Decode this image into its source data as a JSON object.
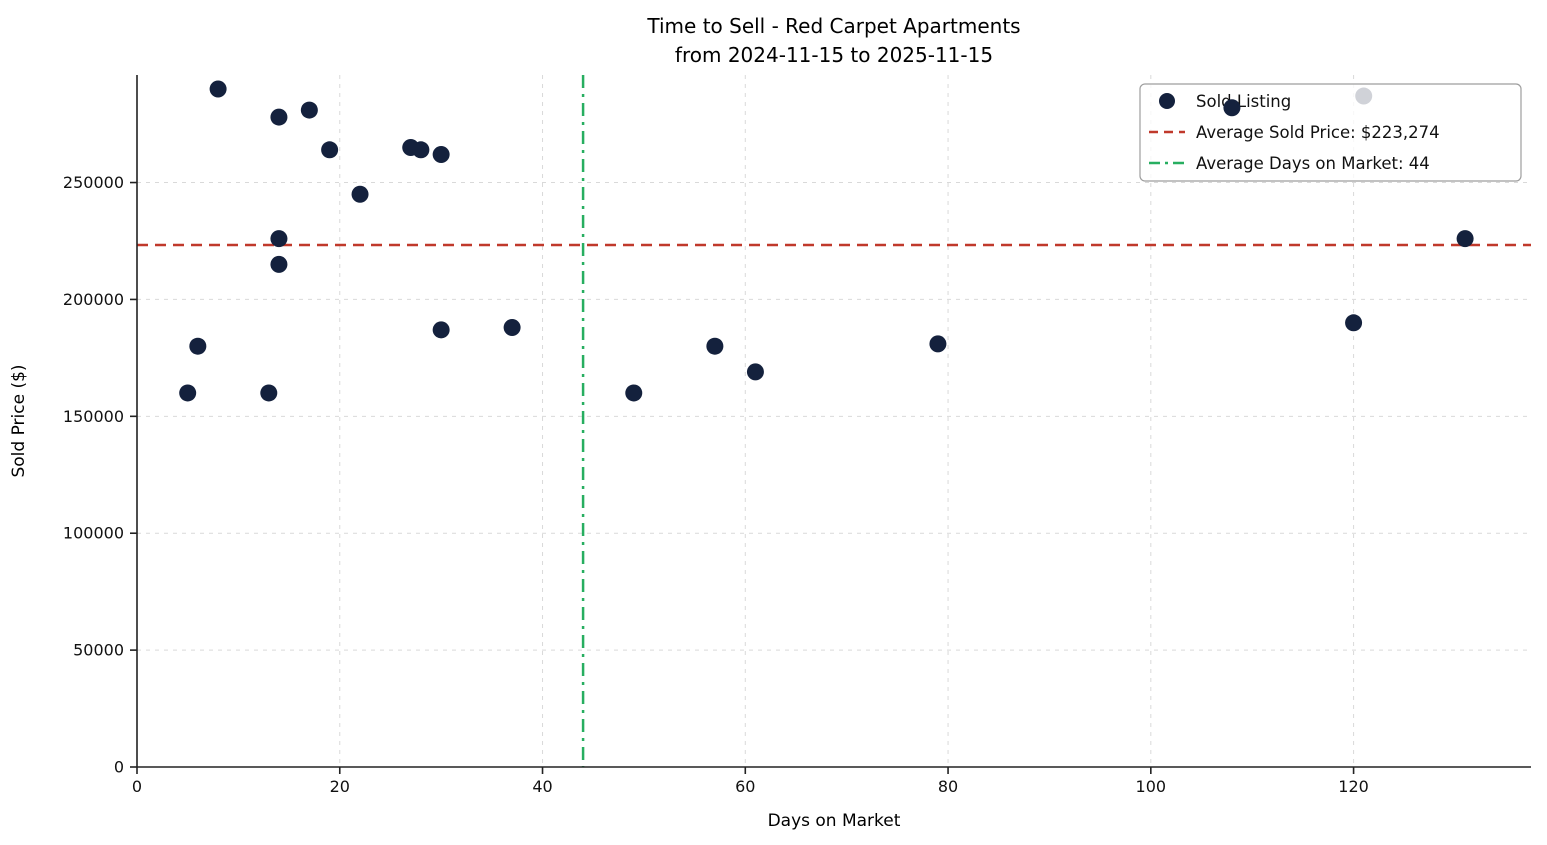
{
  "chart_data": {
    "type": "scatter",
    "title": "Time to Sell - Red Carpet Apartments",
    "subtitle": "from 2024-11-15 to 2025-11-15",
    "xlabel": "Days on Market",
    "ylabel": "Sold Price ($)",
    "xlim": [
      0,
      137.5
    ],
    "ylim": [
      0,
      296000
    ],
    "xticks": [
      0,
      20,
      40,
      60,
      80,
      100,
      120
    ],
    "yticks": [
      0,
      50000,
      100000,
      150000,
      200000,
      250000
    ],
    "grid": true,
    "legend_position": "upper right",
    "series_name": "Sold Listing",
    "points": [
      [
        5,
        160000
      ],
      [
        6,
        180000
      ],
      [
        8,
        290000
      ],
      [
        13,
        160000
      ],
      [
        14,
        278000
      ],
      [
        14,
        226000
      ],
      [
        14,
        215000
      ],
      [
        17,
        281000
      ],
      [
        19,
        264000
      ],
      [
        22,
        245000
      ],
      [
        27,
        265000
      ],
      [
        28,
        264000
      ],
      [
        30,
        262000
      ],
      [
        30,
        187000
      ],
      [
        37,
        188000
      ],
      [
        49,
        160000
      ],
      [
        57,
        180000
      ],
      [
        61,
        169000
      ],
      [
        79,
        181000
      ],
      [
        108,
        282000
      ],
      [
        120,
        190000
      ],
      [
        121,
        287000
      ],
      [
        131,
        226000
      ]
    ],
    "average_sold_price": 223274,
    "average_days_on_market": 44,
    "over_legend_point_index": 19,
    "legend": [
      {
        "label": "Sold Listing",
        "sample": "marker",
        "color": "#14213d"
      },
      {
        "label": "Average Sold Price: $223,274",
        "sample": "dashed",
        "color": "#c0392b"
      },
      {
        "label": "Average Days on Market: 44",
        "sample": "dashdot",
        "color": "#27ae60"
      }
    ],
    "colors": {
      "marker": "#14213d",
      "avg_price": "#c0392b",
      "avg_days": "#27ae60",
      "grid": "#d9d9d9",
      "spine": "#222222",
      "background": "#ffffff"
    }
  }
}
